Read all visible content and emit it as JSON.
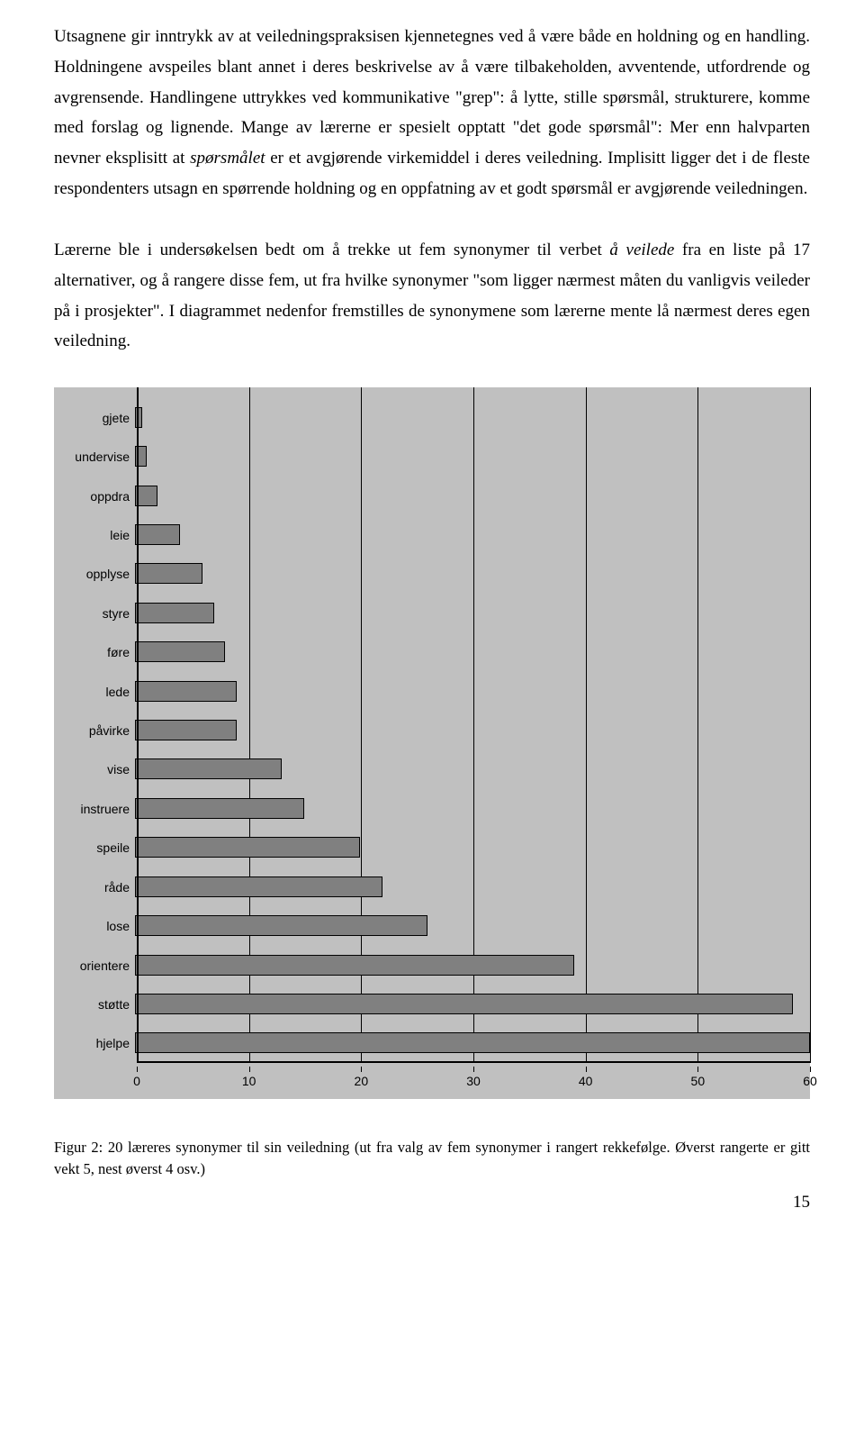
{
  "para1_pre": "Utsagnene gir inntrykk av at veiledningspraksisen kjennetegnes ved å være både en holdning og en handling. Holdningene avspeiles blant annet i deres beskrivelse av å være tilbakeholden, avventende, utfordrende og avgrensende. Handlingene uttrykkes ved kommunikative \"grep\": å lytte, stille spørsmål, strukturere, komme med forslag og lignende. Mange av lærerne er spesielt opptatt \"det gode spørsmål\": Mer enn halvparten nevner eksplisitt at ",
  "para1_italic": "spørsmålet",
  "para1_post": " er et avgjørende virkemiddel i deres veiledning. Implisitt ligger det i de fleste respondenters utsagn en spørrende holdning og en oppfatning av et godt spørsmål er avgjørende veiledningen.",
  "para2_pre": "Lærerne ble i undersøkelsen bedt om å trekke ut fem synonymer til verbet ",
  "para2_italic": "å veilede",
  "para2_post": " fra en liste på 17 alternativer, og å rangere disse fem, ut fra hvilke synonymer \"som ligger nærmest måten du vanligvis veileder på i prosjekter\". I diagrammet nedenfor fremstilles de synonymene som lærerne mente lå nærmest deres egen veiledning.",
  "chart": {
    "type": "bar_horizontal",
    "background_color": "#c0c0c0",
    "bar_color": "#808080",
    "bar_border": "#000000",
    "axis_color": "#000000",
    "grid_color": "#000000",
    "label_fontfamily": "Arial",
    "label_fontsize": 14,
    "xlim": [
      0,
      60
    ],
    "xtick_step": 10,
    "xticks": [
      "0",
      "10",
      "20",
      "30",
      "40",
      "50",
      "60"
    ],
    "categories": [
      "gjete",
      "undervise",
      "oppdra",
      "leie",
      "opplyse",
      "styre",
      "føre",
      "lede",
      "påvirke",
      "vise",
      "instruere",
      "speile",
      "råde",
      "lose",
      "orientere",
      "støtte",
      "hjelpe"
    ],
    "values": [
      0.6,
      1,
      2,
      4,
      6,
      7,
      8,
      9,
      9,
      13,
      15,
      20,
      22,
      26,
      39,
      58.5,
      60
    ]
  },
  "caption": "Figur 2: 20 læreres synonymer til sin veiledning (ut fra valg av fem synonymer i rangert rekkefølge. Øverst rangerte er gitt vekt 5, nest øverst 4 osv.)",
  "page_number": "15"
}
